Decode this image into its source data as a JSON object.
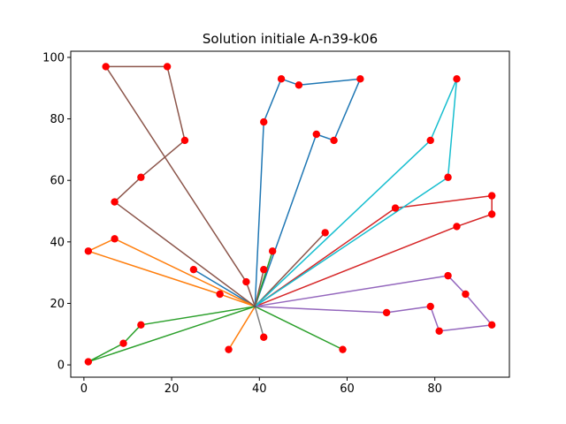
{
  "chart_data": {
    "type": "line",
    "title": "Solution initiale A-n39-k06",
    "xlabel": "",
    "ylabel": "",
    "xlim": [
      -3,
      97
    ],
    "ylim": [
      -4,
      102
    ],
    "xticks": [
      0,
      20,
      40,
      60,
      80
    ],
    "yticks": [
      0,
      20,
      40,
      60,
      80,
      100
    ],
    "grid": false,
    "depot": {
      "x": 39,
      "y": 19
    },
    "point_color": "#ff0000",
    "routes": [
      {
        "color": "#1f77b4",
        "points": [
          [
            39,
            19
          ],
          [
            41,
            79
          ],
          [
            45,
            93
          ],
          [
            49,
            91
          ],
          [
            63,
            93
          ],
          [
            57,
            73
          ],
          [
            53,
            75
          ],
          [
            39,
            19
          ]
        ]
      },
      {
        "color": "#1f77b4",
        "points": [
          [
            39,
            19
          ],
          [
            25,
            31
          ],
          [
            39,
            19
          ]
        ]
      },
      {
        "color": "#ff7f0e",
        "points": [
          [
            39,
            19
          ],
          [
            7,
            41
          ],
          [
            1,
            37
          ],
          [
            31,
            23
          ],
          [
            39,
            19
          ]
        ]
      },
      {
        "color": "#ff7f0e",
        "points": [
          [
            39,
            19
          ],
          [
            33,
            5
          ],
          [
            39,
            19
          ]
        ]
      },
      {
        "color": "#2ca02c",
        "points": [
          [
            39,
            19
          ],
          [
            13,
            13
          ],
          [
            9,
            7
          ],
          [
            1,
            1
          ],
          [
            39,
            19
          ]
        ]
      },
      {
        "color": "#2ca02c",
        "points": [
          [
            39,
            19
          ],
          [
            59,
            5
          ],
          [
            39,
            19
          ]
        ]
      },
      {
        "color": "#2ca02c",
        "points": [
          [
            39,
            19
          ],
          [
            43,
            37
          ],
          [
            39,
            19
          ]
        ]
      },
      {
        "color": "#d62728",
        "points": [
          [
            39,
            19
          ],
          [
            71,
            51
          ],
          [
            93,
            55
          ],
          [
            93,
            49
          ],
          [
            85,
            45
          ],
          [
            39,
            19
          ]
        ]
      },
      {
        "color": "#9467bd",
        "points": [
          [
            39,
            19
          ],
          [
            69,
            17
          ],
          [
            79,
            19
          ],
          [
            81,
            11
          ],
          [
            93,
            13
          ],
          [
            87,
            23
          ],
          [
            83,
            29
          ],
          [
            39,
            19
          ]
        ]
      },
      {
        "color": "#8c564b",
        "points": [
          [
            39,
            19
          ],
          [
            7,
            53
          ],
          [
            13,
            61
          ],
          [
            23,
            73
          ],
          [
            19,
            97
          ],
          [
            5,
            97
          ],
          [
            37,
            27
          ],
          [
            39,
            19
          ]
        ]
      },
      {
        "color": "#8c564b",
        "points": [
          [
            39,
            19
          ],
          [
            55,
            43
          ],
          [
            39,
            19
          ]
        ]
      },
      {
        "color": "#8c564b",
        "points": [
          [
            39,
            19
          ],
          [
            41,
            31
          ],
          [
            39,
            19
          ]
        ]
      },
      {
        "color": "#7f7f7f",
        "points": [
          [
            39,
            19
          ],
          [
            41,
            9
          ],
          [
            39,
            19
          ]
        ]
      },
      {
        "color": "#17becf",
        "points": [
          [
            39,
            19
          ],
          [
            83,
            61
          ],
          [
            85,
            93
          ],
          [
            79,
            73
          ],
          [
            39,
            19
          ]
        ]
      }
    ]
  }
}
